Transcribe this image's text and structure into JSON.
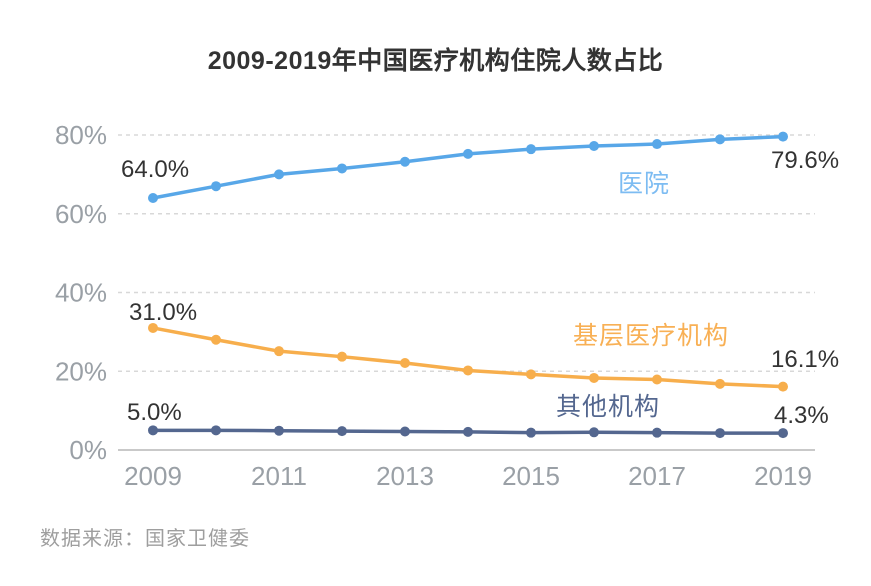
{
  "title": "2009-2019年中国医疗机构住院人数占比",
  "source_note": "数据来源：国家卫健委",
  "colors": {
    "title_text": "#333333",
    "value_label_text": "#333333",
    "tick_text": "#9aa0a6",
    "gridline": "#d8d8d8",
    "axis_line": "#c9c9c9",
    "background": "#ffffff",
    "source_text": "#9e9e9e"
  },
  "chart_data": {
    "type": "line",
    "title": "2009-2019年中国医疗机构住院人数占比",
    "xlabel": "",
    "ylabel": "",
    "x": [
      2009,
      2010,
      2011,
      2012,
      2013,
      2014,
      2015,
      2016,
      2017,
      2018,
      2019
    ],
    "x_tick_labels": [
      "2009",
      "2011",
      "2013",
      "2015",
      "2017",
      "2019"
    ],
    "y_ticks": [
      0,
      20,
      40,
      60,
      80
    ],
    "y_tick_labels": [
      "0%",
      "20%",
      "40%",
      "60%",
      "80%"
    ],
    "ylim": [
      0,
      84
    ],
    "grid": "horizontal-dashed",
    "legend_position": "inline-labels-near-lines",
    "series": [
      {
        "name": "医院",
        "color": "#58a7e8",
        "label_color": "#7dbcf2",
        "values": [
          64.0,
          67.0,
          70.0,
          71.5,
          73.2,
          75.2,
          76.4,
          77.2,
          77.7,
          78.9,
          79.6
        ]
      },
      {
        "name": "基层医疗机构",
        "color": "#f7ae4c",
        "label_color": "#f8b055",
        "values": [
          31.0,
          28.0,
          25.1,
          23.7,
          22.1,
          20.2,
          19.2,
          18.3,
          17.9,
          16.8,
          16.1
        ]
      },
      {
        "name": "其他机构",
        "color": "#54678f",
        "label_color": "#54678f",
        "values": [
          5.0,
          5.0,
          4.9,
          4.8,
          4.7,
          4.6,
          4.4,
          4.5,
          4.4,
          4.3,
          4.3
        ]
      }
    ],
    "annotations": {
      "hospital_start": "64.0%",
      "hospital_end": "79.6%",
      "primary_start": "31.0%",
      "primary_end": "16.1%",
      "other_start": "5.0%",
      "other_end": "4.3%"
    }
  }
}
